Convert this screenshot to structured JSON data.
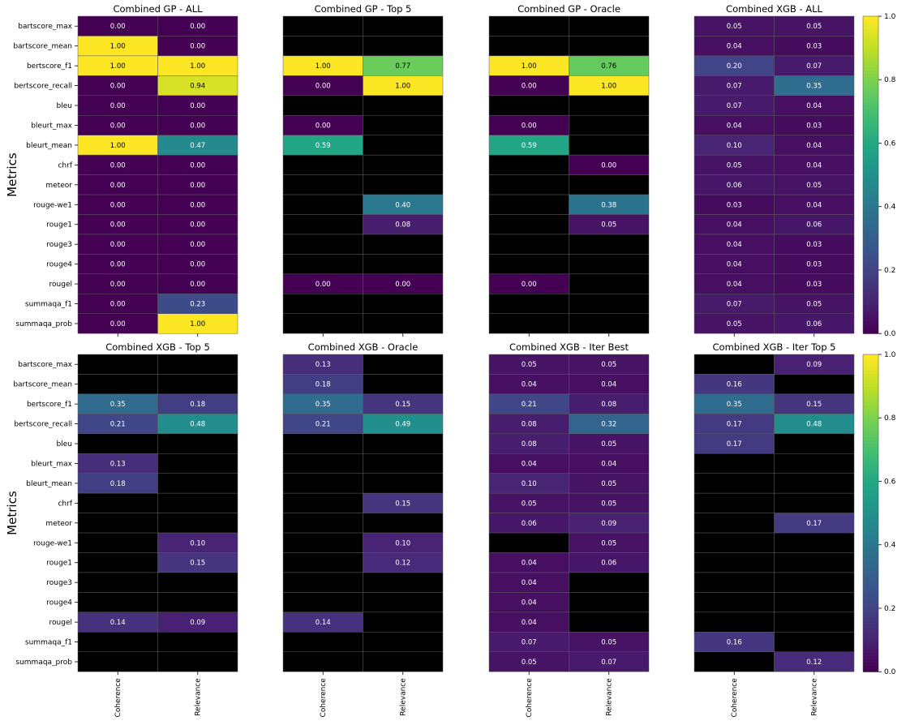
{
  "chart_data": {
    "type": "heatmap",
    "metrics": [
      "bartscore_max",
      "bartscore_mean",
      "bertscore_f1",
      "bertscore_recall",
      "bleu",
      "bleurt_max",
      "bleurt_mean",
      "chrf",
      "meteor",
      "rouge-we1",
      "rouge1",
      "rouge3",
      "rouge4",
      "rougel",
      "summaqa_f1",
      "summaqa_prob"
    ],
    "columns": [
      "Coherence",
      "Relevance"
    ],
    "ylabel": "Metrics",
    "colormap": "viridis",
    "missing_color": "#000000",
    "colorbar": {
      "min": 0.0,
      "max": 1.0,
      "ticks": [
        "0.0",
        "0.2",
        "0.4",
        "0.6",
        "0.8",
        "1.0"
      ]
    },
    "panels": [
      {
        "title": "Combined GP - ALL",
        "values": [
          [
            0.0,
            0.0
          ],
          [
            1.0,
            0.0
          ],
          [
            1.0,
            1.0
          ],
          [
            0.0,
            0.94
          ],
          [
            0.0,
            0.0
          ],
          [
            0.0,
            0.0
          ],
          [
            1.0,
            0.47
          ],
          [
            0.0,
            0.0
          ],
          [
            0.0,
            0.0
          ],
          [
            0.0,
            0.0
          ],
          [
            0.0,
            0.0
          ],
          [
            0.0,
            0.0
          ],
          [
            0.0,
            0.0
          ],
          [
            0.0,
            0.0
          ],
          [
            0.0,
            0.23
          ],
          [
            0.0,
            1.0
          ]
        ]
      },
      {
        "title": "Combined GP - Top 5",
        "values": [
          [
            null,
            null
          ],
          [
            null,
            null
          ],
          [
            1.0,
            0.77
          ],
          [
            0.0,
            1.0
          ],
          [
            null,
            null
          ],
          [
            0.0,
            null
          ],
          [
            0.59,
            null
          ],
          [
            null,
            null
          ],
          [
            null,
            null
          ],
          [
            null,
            0.4
          ],
          [
            null,
            0.08
          ],
          [
            null,
            null
          ],
          [
            null,
            null
          ],
          [
            0.0,
            0.0
          ],
          [
            null,
            null
          ],
          [
            null,
            null
          ]
        ]
      },
      {
        "title": "Combined GP - Oracle",
        "values": [
          [
            null,
            null
          ],
          [
            null,
            null
          ],
          [
            1.0,
            0.76
          ],
          [
            0.0,
            1.0
          ],
          [
            null,
            null
          ],
          [
            0.0,
            null
          ],
          [
            0.59,
            null
          ],
          [
            null,
            0.0
          ],
          [
            null,
            null
          ],
          [
            null,
            0.38
          ],
          [
            null,
            0.05
          ],
          [
            null,
            null
          ],
          [
            null,
            null
          ],
          [
            0.0,
            null
          ],
          [
            null,
            null
          ],
          [
            null,
            null
          ]
        ]
      },
      {
        "title": "Combined XGB - ALL",
        "values": [
          [
            0.05,
            0.05
          ],
          [
            0.04,
            0.03
          ],
          [
            0.2,
            0.07
          ],
          [
            0.07,
            0.35
          ],
          [
            0.07,
            0.04
          ],
          [
            0.04,
            0.03
          ],
          [
            0.1,
            0.04
          ],
          [
            0.05,
            0.04
          ],
          [
            0.06,
            0.05
          ],
          [
            0.03,
            0.04
          ],
          [
            0.04,
            0.06
          ],
          [
            0.04,
            0.03
          ],
          [
            0.04,
            0.03
          ],
          [
            0.04,
            0.03
          ],
          [
            0.07,
            0.05
          ],
          [
            0.05,
            0.06
          ]
        ]
      },
      {
        "title": "Combined XGB - Top 5",
        "values": [
          [
            null,
            null
          ],
          [
            null,
            null
          ],
          [
            0.35,
            0.18
          ],
          [
            0.21,
            0.48
          ],
          [
            null,
            null
          ],
          [
            0.13,
            null
          ],
          [
            0.18,
            null
          ],
          [
            null,
            null
          ],
          [
            null,
            null
          ],
          [
            null,
            0.1
          ],
          [
            null,
            0.15
          ],
          [
            null,
            null
          ],
          [
            null,
            null
          ],
          [
            0.14,
            0.09
          ],
          [
            null,
            null
          ],
          [
            null,
            null
          ]
        ]
      },
      {
        "title": "Combined XGB - Oracle",
        "values": [
          [
            0.13,
            null
          ],
          [
            0.18,
            null
          ],
          [
            0.35,
            0.15
          ],
          [
            0.21,
            0.49
          ],
          [
            null,
            null
          ],
          [
            null,
            null
          ],
          [
            null,
            null
          ],
          [
            null,
            0.15
          ],
          [
            null,
            null
          ],
          [
            null,
            0.1
          ],
          [
            null,
            0.12
          ],
          [
            null,
            null
          ],
          [
            null,
            null
          ],
          [
            0.14,
            null
          ],
          [
            null,
            null
          ],
          [
            null,
            null
          ]
        ]
      },
      {
        "title": "Combined XGB - Iter Best",
        "values": [
          [
            0.05,
            0.05
          ],
          [
            0.04,
            0.04
          ],
          [
            0.21,
            0.08
          ],
          [
            0.08,
            0.32
          ],
          [
            0.08,
            0.05
          ],
          [
            0.04,
            0.04
          ],
          [
            0.1,
            0.05
          ],
          [
            0.05,
            0.05
          ],
          [
            0.06,
            0.09
          ],
          [
            null,
            0.05
          ],
          [
            0.04,
            0.06
          ],
          [
            0.04,
            null
          ],
          [
            0.04,
            null
          ],
          [
            0.04,
            null
          ],
          [
            0.07,
            0.05
          ],
          [
            0.05,
            0.07
          ]
        ]
      },
      {
        "title": "Combined XGB - Iter Top 5",
        "values": [
          [
            null,
            0.09
          ],
          [
            0.16,
            null
          ],
          [
            0.35,
            0.15
          ],
          [
            0.17,
            0.48
          ],
          [
            0.17,
            null
          ],
          [
            null,
            null
          ],
          [
            null,
            null
          ],
          [
            null,
            null
          ],
          [
            null,
            0.17
          ],
          [
            null,
            null
          ],
          [
            null,
            null
          ],
          [
            null,
            null
          ],
          [
            null,
            null
          ],
          [
            null,
            null
          ],
          [
            0.16,
            null
          ],
          [
            null,
            0.12
          ]
        ]
      }
    ]
  }
}
